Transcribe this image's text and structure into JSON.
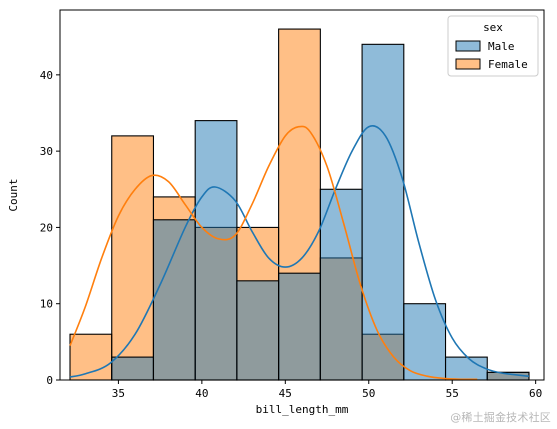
{
  "chart_data": {
    "type": "histogram",
    "xlabel": "bill_length_mm",
    "ylabel": "Count",
    "xlim": [
      31.5,
      60.5
    ],
    "ylim": [
      0,
      48.5
    ],
    "xticks": [
      35,
      40,
      45,
      50,
      55,
      60
    ],
    "yticks": [
      0,
      10,
      20,
      30,
      40
    ],
    "bins": [
      [
        32.1,
        34.6
      ],
      [
        34.6,
        37.1
      ],
      [
        37.1,
        39.6
      ],
      [
        39.6,
        42.1
      ],
      [
        42.1,
        44.6
      ],
      [
        44.6,
        47.1
      ],
      [
        47.1,
        49.6
      ],
      [
        49.6,
        52.1
      ],
      [
        52.1,
        54.6
      ],
      [
        54.6,
        57.1
      ],
      [
        57.1,
        59.6
      ]
    ],
    "legend": {
      "title": "sex",
      "position": "upper right",
      "items": [
        {
          "label": "Male",
          "color": "#1f77b4"
        },
        {
          "label": "Female",
          "color": "#ff7f0e"
        }
      ]
    },
    "series": [
      {
        "name": "Male",
        "color": "#1f77b4",
        "counts": [
          0,
          3,
          21,
          34,
          13,
          14,
          25,
          44,
          10,
          3,
          1
        ],
        "kde": [
          [
            32.1,
            0.4
          ],
          [
            33.0,
            0.8
          ],
          [
            34.5,
            2.2
          ],
          [
            36.0,
            6.0
          ],
          [
            37.5,
            12.5
          ],
          [
            39.0,
            20.0
          ],
          [
            40.0,
            24.0
          ],
          [
            40.8,
            25.3
          ],
          [
            42.0,
            23.5
          ],
          [
            43.0,
            19.5
          ],
          [
            44.0,
            16.0
          ],
          [
            45.0,
            14.8
          ],
          [
            46.0,
            16.0
          ],
          [
            47.0,
            19.5
          ],
          [
            48.0,
            25.0
          ],
          [
            49.0,
            30.0
          ],
          [
            50.0,
            33.2
          ],
          [
            51.0,
            32.0
          ],
          [
            52.0,
            26.5
          ],
          [
            53.0,
            18.0
          ],
          [
            54.0,
            10.5
          ],
          [
            55.0,
            5.5
          ],
          [
            56.0,
            2.8
          ],
          [
            57.0,
            1.5
          ],
          [
            58.0,
            0.9
          ],
          [
            59.6,
            0.5
          ]
        ]
      },
      {
        "name": "Female",
        "color": "#ff7f0e",
        "counts": [
          6,
          32,
          24,
          20,
          20,
          46,
          16,
          6,
          0,
          0,
          1
        ],
        "kde": [
          [
            32.1,
            4.5
          ],
          [
            33.0,
            9.5
          ],
          [
            34.0,
            16.0
          ],
          [
            35.0,
            21.5
          ],
          [
            36.0,
            25.0
          ],
          [
            37.0,
            26.8
          ],
          [
            38.0,
            26.0
          ],
          [
            39.0,
            23.0
          ],
          [
            40.0,
            20.0
          ],
          [
            41.0,
            18.5
          ],
          [
            42.0,
            19.0
          ],
          [
            43.0,
            23.0
          ],
          [
            44.0,
            28.0
          ],
          [
            45.0,
            32.0
          ],
          [
            45.8,
            33.2
          ],
          [
            46.5,
            32.5
          ],
          [
            47.5,
            28.0
          ],
          [
            48.5,
            20.5
          ],
          [
            49.5,
            12.5
          ],
          [
            50.5,
            6.5
          ],
          [
            51.5,
            3.0
          ],
          [
            52.5,
            1.2
          ],
          [
            53.5,
            0.5
          ],
          [
            54.5,
            0.2
          ],
          [
            55.5,
            0.1
          ],
          [
            56.5,
            0.1
          ]
        ]
      }
    ]
  },
  "watermark": "@稀土掘金技术社区"
}
